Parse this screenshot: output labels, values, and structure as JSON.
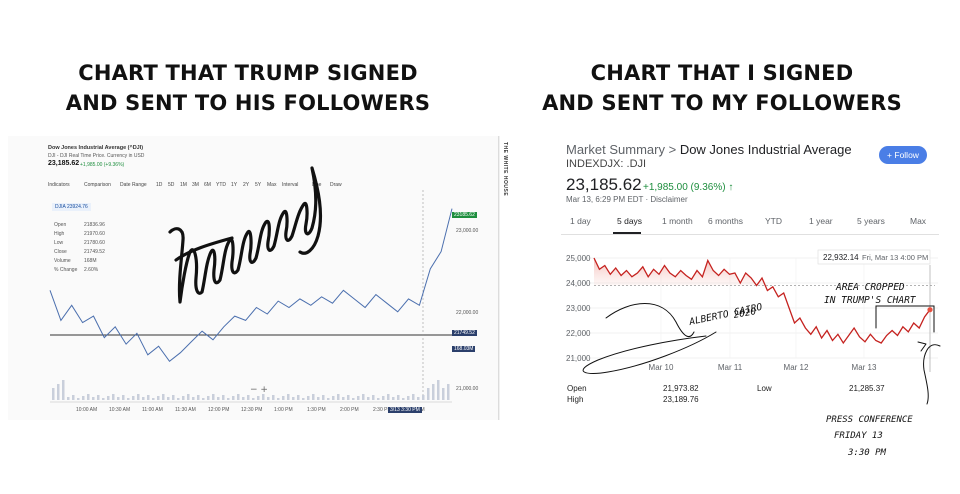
{
  "headings": {
    "left": [
      "CHART THAT TRUMP SIGNED",
      "AND SENT TO HIS FOLLOWERS"
    ],
    "right": [
      "CHART THAT I SIGNED",
      "AND SENT TO MY FOLLOWERS"
    ]
  },
  "left_chart": {
    "title": "Dow Jones Industrial Average (^DJI)",
    "subtitle": "DJI - DJI Real Time Price. Currency in USD",
    "price": "23,185.62",
    "change": "+1,985.00 (+9.36%)",
    "toolbar": [
      "Indicators",
      "Comparison",
      "Date Range",
      "1D",
      "5D",
      "1M",
      "3M",
      "6M",
      "YTD",
      "1Y",
      "2Y",
      "5Y",
      "Max",
      "Interval",
      "Line",
      "Draw"
    ],
    "info_box_label": "DJIA 23924.76",
    "stats_labels": [
      "Open",
      "High",
      "Low",
      "Close",
      "Volume",
      "% Change"
    ],
    "stats_values": [
      "21836.96",
      "21970.60",
      "21780.60",
      "21749.52",
      "168M",
      "2.60%"
    ],
    "right_axis": [
      "23,000.00",
      "22,000.00",
      "21,000.00"
    ],
    "right_axis_tags": [
      "23185.62",
      "21749.52",
      "168.03M"
    ],
    "time_labels": [
      "10:00 AM",
      "10:30 AM",
      "11:00 AM",
      "11:30 AM",
      "12:00 PM",
      "12:30 PM",
      "1:00 PM",
      "1:30 PM",
      "2:00 PM",
      "2:30 PM",
      "3:00 PM",
      "3/13 3:30 PM"
    ],
    "side_label": "THE WHITE HOUSE",
    "line": [
      22.7,
      22.0,
      22.35,
      21.95,
      22.1,
      21.6,
      21.85,
      21.45,
      21.7,
      21.2,
      21.4,
      21.05,
      21.25,
      21.5,
      21.75,
      21.55,
      21.85,
      22.1,
      22.0,
      22.3,
      22.15,
      22.45,
      22.3,
      22.5,
      22.35,
      22.55,
      22.4,
      22.7,
      22.5,
      22.3,
      22.6,
      22.4,
      22.2,
      22.5,
      22.35,
      23.2,
      23.6,
      24.6
    ]
  },
  "market_summary": {
    "title_prefix": "Market Summary",
    "separator": ">",
    "title_name": "Dow Jones Industrial Average",
    "ticker": "INDEXDJX: .DJI",
    "follow_label": "+ Follow",
    "price": "23,185.62",
    "change": "+1,985.00 (9.36%) ↑",
    "timestamp": "Mar 13, 6:29 PM EDT · Disclaimer",
    "tabs": [
      "1 day",
      "5 days",
      "1 month",
      "6 months",
      "YTD",
      "1 year",
      "5 years",
      "Max"
    ],
    "active_tab": "5 days",
    "tooltip": {
      "value": "22,932.14",
      "time": "Fri, Mar 13 4:00 PM"
    },
    "stats": {
      "open_label": "Open",
      "open": "21,973.82",
      "high_label": "High",
      "high": "23,189.76",
      "low_label": "Low",
      "low": "21,285.37"
    }
  },
  "chart_data": {
    "type": "line",
    "title": "",
    "xlabel": "",
    "ylabel": "",
    "x_ticks": [
      "Mar 10",
      "Mar 11",
      "Mar 12",
      "Mar 13"
    ],
    "y_ticks": [
      "25,000",
      "24,000",
      "23,000",
      "22,000",
      "21,000"
    ],
    "ylim": [
      21000,
      25000
    ],
    "previous_close": 23900,
    "series": [
      {
        "values": [
          25000,
          24550,
          24700,
          24350,
          24600,
          24300,
          24500,
          24250,
          24400,
          24650,
          24250,
          24550,
          24350,
          24700,
          24400,
          24250,
          24500,
          24300,
          24150,
          24500,
          24250,
          24900,
          24500,
          24300,
          24550,
          24350,
          24400,
          24000,
          24400,
          24200,
          23900,
          24200,
          23700,
          23850,
          23450,
          23600,
          23000,
          22400,
          22600,
          22200,
          21950,
          22250,
          21800,
          22100,
          21700,
          21950,
          21600,
          21900,
          22200,
          21850,
          21650,
          21950,
          21700,
          21600,
          21900,
          22100,
          21900,
          22250,
          22050,
          22400,
          22200,
          22650,
          22932
        ]
      }
    ]
  },
  "annotations": {
    "signature_2": "ALBERTO CAIRO\n2020",
    "area_note": "AREA CROPPED\nIN TRUMP'S CHART",
    "press_note": "PRESS CONFERENCE\nFRIDAY 13\n3:30 PM"
  }
}
